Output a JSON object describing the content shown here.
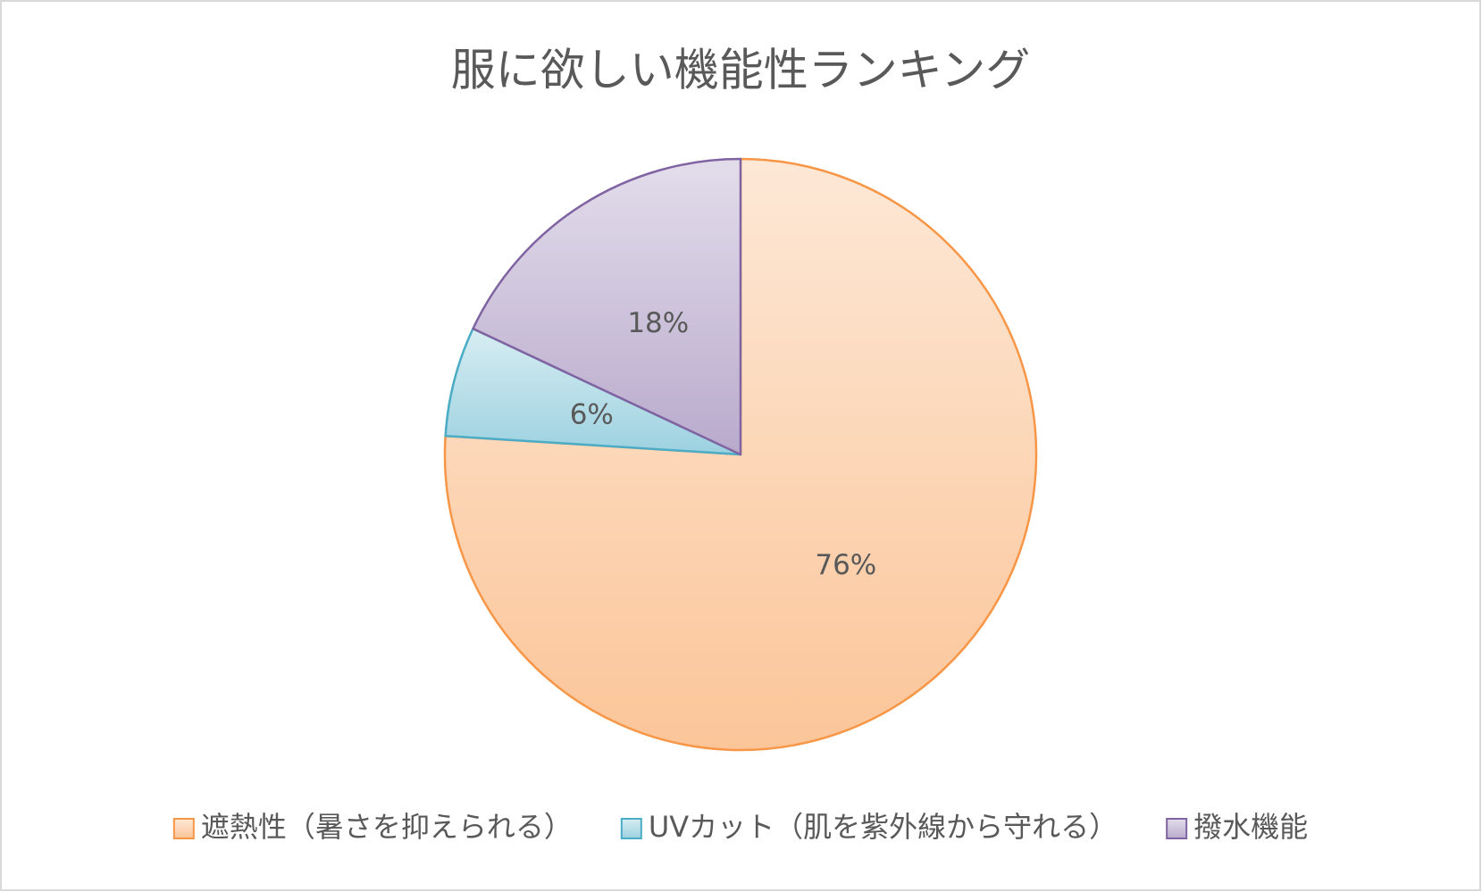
{
  "chart_data": {
    "type": "pie",
    "title": "服に欲しい機能性ランキング",
    "categories": [
      "遮熱性（暑さを抑えられる）",
      "UVカット（肌を紫外線から守れる）",
      "撥水機能"
    ],
    "values": [
      76,
      6,
      18
    ],
    "value_labels": [
      "76%",
      "6%",
      "18%"
    ],
    "colors": [
      "#f79646",
      "#4bacc6",
      "#8064a2"
    ],
    "legend": "bottom"
  }
}
